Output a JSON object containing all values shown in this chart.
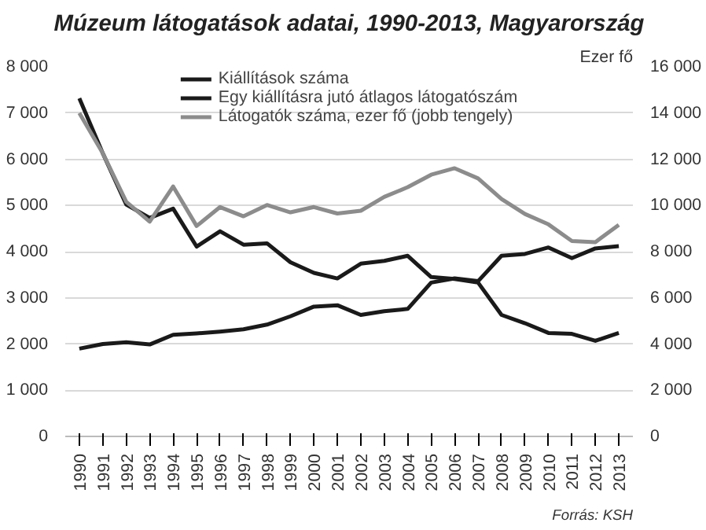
{
  "chart_data": {
    "type": "line",
    "title": "Múzeum látogatások adatai, 1990-2013, Magyarország",
    "y2label": "Ezer fő",
    "categories": [
      "1990",
      "1991",
      "1992",
      "1993",
      "1994",
      "1995",
      "1996",
      "1997",
      "1998",
      "1999",
      "2000",
      "2001",
      "2002",
      "2003",
      "2004",
      "2005",
      "2006",
      "2007",
      "2008",
      "2009",
      "2010",
      "2011",
      "2012",
      "2013"
    ],
    "series": [
      {
        "name": "Kiállítások száma",
        "color": "#1a1a1a",
        "values": [
          1900,
          2000,
          2040,
          1990,
          2200,
          2230,
          2270,
          2320,
          2420,
          2600,
          2810,
          2840,
          2630,
          2710,
          2760,
          3330,
          3420,
          3360,
          3910,
          3950,
          4090,
          3860,
          4070,
          4120
        ]
      },
      {
        "name": "Egy kiállításra jutó átlagos látogatószám",
        "color": "#1a1a1a",
        "values": [
          7320,
          6130,
          5020,
          4730,
          4930,
          4110,
          4440,
          4150,
          4180,
          3770,
          3540,
          3420,
          3740,
          3800,
          3910,
          3450,
          3410,
          3330,
          2630,
          2450,
          2240,
          2220,
          2070,
          2240
        ]
      },
      {
        "name": "Látogatók száma, ezer fő (jobb tengely)",
        "color": "#8c8c8c",
        "axis": "y2",
        "values": [
          14000,
          12260,
          10160,
          9300,
          10820,
          9110,
          9930,
          9530,
          10020,
          9700,
          9930,
          9650,
          9770,
          10370,
          10790,
          11330,
          11610,
          11170,
          10280,
          9630,
          9180,
          8460,
          8410,
          9160
        ]
      }
    ],
    "ylim": [
      0,
      8000
    ],
    "yticks": [
      {
        "value": 0,
        "label": "0"
      },
      {
        "value": 1000,
        "label": "1 000"
      },
      {
        "value": 2000,
        "label": "2 000"
      },
      {
        "value": 3000,
        "label": "3 000"
      },
      {
        "value": 4000,
        "label": "4 000"
      },
      {
        "value": 5000,
        "label": "5 000"
      },
      {
        "value": 6000,
        "label": "6 000"
      },
      {
        "value": 7000,
        "label": "7 000"
      },
      {
        "value": 8000,
        "label": "8 000"
      }
    ],
    "y2lim": [
      0,
      16000
    ],
    "y2ticks": [
      {
        "value": 0,
        "label": "0"
      },
      {
        "value": 2000,
        "label": "2 000"
      },
      {
        "value": 4000,
        "label": "4 000"
      },
      {
        "value": 6000,
        "label": "6 000"
      },
      {
        "value": 8000,
        "label": "8 000"
      },
      {
        "value": 10000,
        "label": "10 000"
      },
      {
        "value": 12000,
        "label": "12 000"
      },
      {
        "value": 14000,
        "label": "14 000"
      },
      {
        "value": 16000,
        "label": "16 000"
      }
    ],
    "grid": "y",
    "legend": "top",
    "marker": "none",
    "line_style": "solid",
    "annotations": [
      "Forrás: KSH"
    ]
  }
}
